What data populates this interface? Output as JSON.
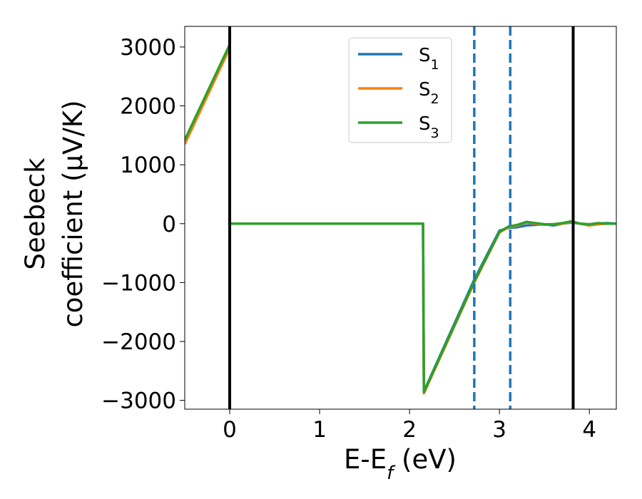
{
  "chart_data": {
    "type": "line",
    "xlabel": "E-E_f (eV)",
    "ylabel_line1": "Seebeck",
    "ylabel_line2": "coefficient  (μV/K)",
    "xlim": [
      -0.5,
      4.3
    ],
    "ylim": [
      -3150,
      3350
    ],
    "xticks": [
      0,
      1,
      2,
      3,
      4
    ],
    "xtick_labels": [
      "0",
      "1",
      "2",
      "3",
      "4"
    ],
    "yticks": [
      3000,
      2000,
      1000,
      0,
      -1000,
      -2000,
      -3000
    ],
    "ytick_labels": [
      "3000",
      "2000",
      "1000",
      "0",
      "−1000",
      "−2000",
      "−3000"
    ],
    "grid": false,
    "legend_placement": "top-center",
    "vlines_solid": [
      0.0,
      3.82
    ],
    "vlines_dashed": [
      2.72,
      3.12
    ],
    "series": [
      {
        "name_base": "S",
        "name_sub": "1",
        "color": "#1f77b4",
        "x": [
          -0.5,
          0.0,
          0.0,
          2.15,
          2.16,
          2.72,
          3.0,
          3.1,
          3.2,
          3.3,
          3.4,
          3.5,
          3.6,
          3.7,
          3.8,
          3.9,
          4.0,
          4.1,
          4.2,
          4.3
        ],
        "y": [
          1400,
          3020,
          0,
          0,
          -2850,
          -950,
          -120,
          -70,
          -60,
          -30,
          -20,
          -10,
          -30,
          0,
          20,
          0,
          -30,
          0,
          10,
          0
        ]
      },
      {
        "name_base": "S",
        "name_sub": "2",
        "color": "#ff7f0e",
        "x": [
          -0.5,
          0.0,
          0.0,
          2.15,
          2.16,
          2.72,
          3.0,
          3.1,
          3.2,
          3.3,
          3.4,
          3.5,
          3.6,
          3.7,
          3.8,
          3.9,
          4.0,
          4.1,
          4.2,
          4.3
        ],
        "y": [
          1350,
          2980,
          0,
          0,
          -2880,
          -1000,
          -150,
          -60,
          -30,
          20,
          0,
          -20,
          -10,
          0,
          30,
          0,
          -30,
          -10,
          0,
          0
        ]
      },
      {
        "name_base": "S",
        "name_sub": "3",
        "color": "#2ca02c",
        "x": [
          -0.5,
          0.0,
          0.0,
          2.15,
          2.16,
          2.72,
          3.0,
          3.1,
          3.2,
          3.3,
          3.4,
          3.5,
          3.6,
          3.7,
          3.8,
          3.9,
          4.0,
          4.1,
          4.2,
          4.3
        ],
        "y": [
          1420,
          3040,
          0,
          0,
          -2860,
          -980,
          -140,
          -50,
          -20,
          30,
          10,
          -10,
          -10,
          10,
          40,
          0,
          -10,
          10,
          0,
          0
        ]
      }
    ]
  }
}
